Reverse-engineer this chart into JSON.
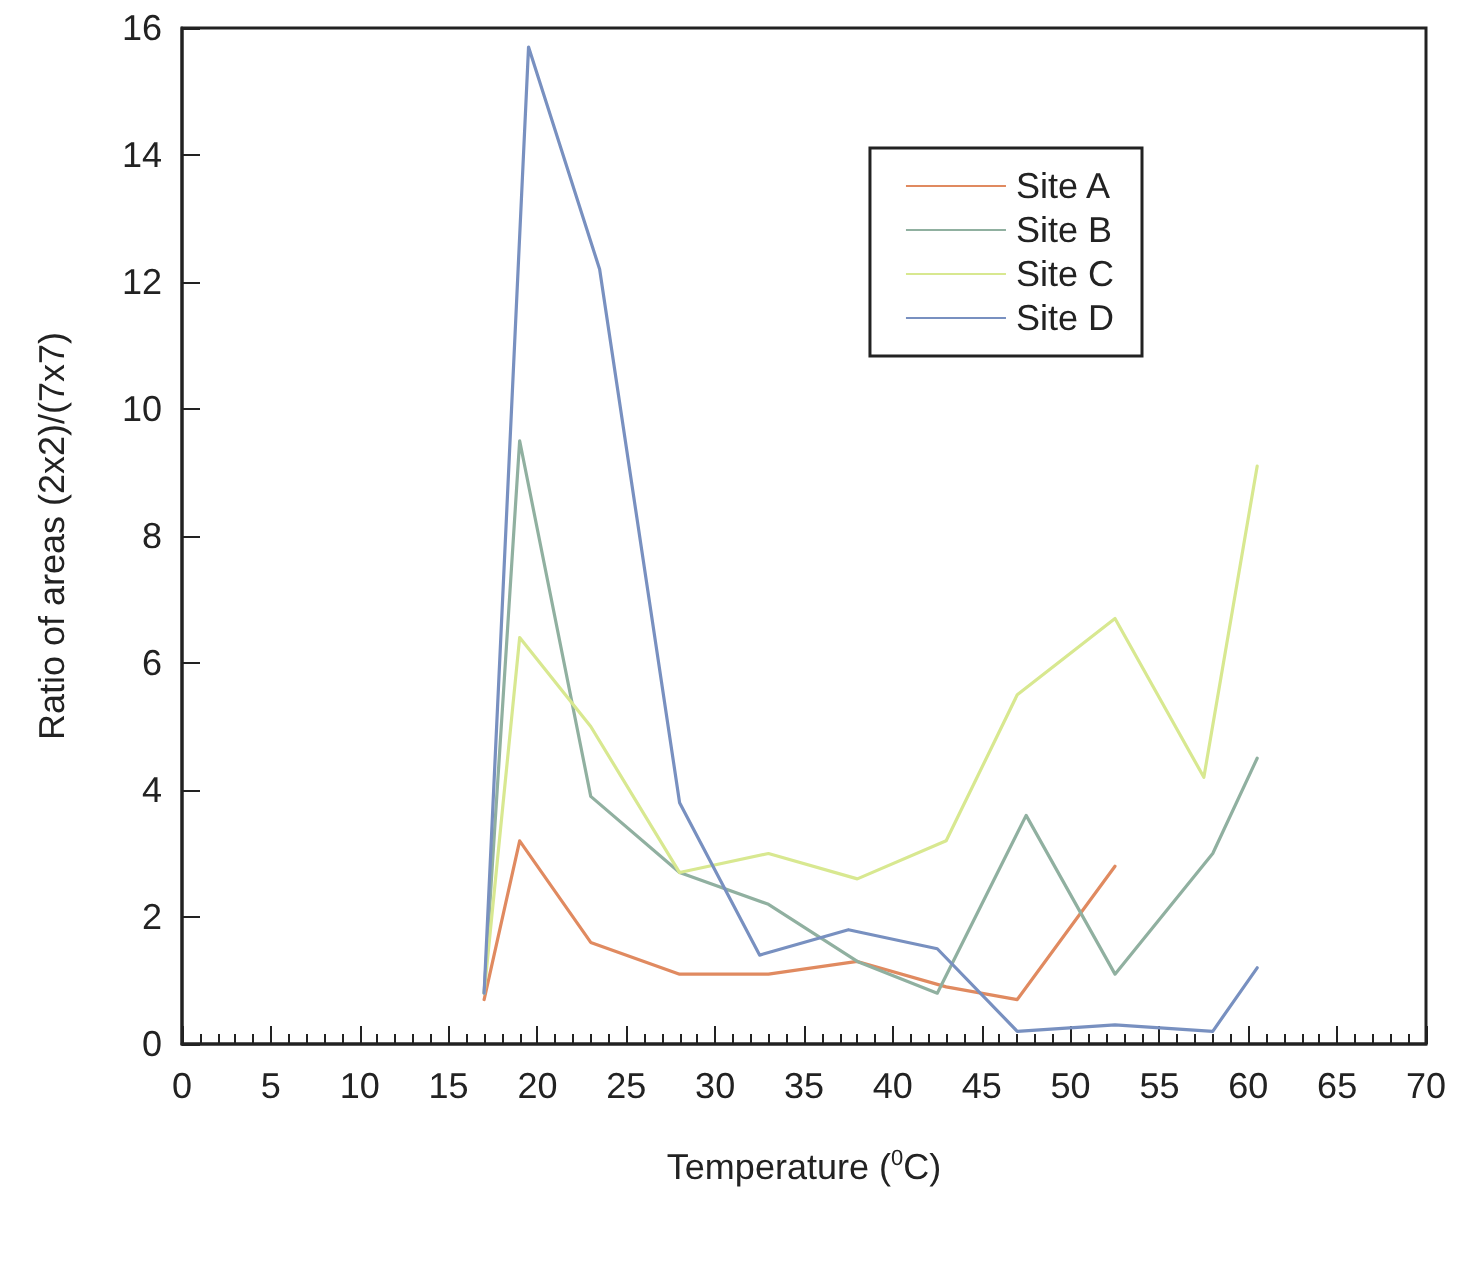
{
  "chart_data": {
    "type": "line",
    "xlabel": "Temperature ($^{0}$C)",
    "ylabel": "Ratio of areas (2x2)/(7x7)",
    "xlim": [
      0,
      70
    ],
    "xticks": [
      0,
      5,
      10,
      15,
      20,
      25,
      30,
      35,
      40,
      45,
      50,
      55,
      60,
      65,
      70
    ],
    "ylim": [
      0,
      16
    ],
    "yticks": [
      0,
      2,
      4,
      6,
      8,
      10,
      12,
      14,
      16
    ],
    "grid": false,
    "legend": "top right",
    "marker": "none",
    "line_style": "solid",
    "series": [
      {
        "name": "Site A",
        "color": "#e08a60",
        "x": [
          17,
          19,
          23,
          28,
          33,
          38,
          43,
          47,
          52.5
        ],
        "values": [
          0.7,
          3.2,
          1.6,
          1.1,
          1.1,
          1.3,
          0.9,
          0.7,
          2.8
        ]
      },
      {
        "name": "Site B",
        "color": "#90b0a0",
        "x": [
          17,
          19,
          23,
          28,
          33,
          38,
          42.5,
          47.5,
          52.5,
          58,
          60.5
        ],
        "values": [
          0.8,
          9.5,
          3.9,
          2.7,
          2.2,
          1.3,
          0.8,
          3.6,
          1.1,
          3.0,
          4.5
        ]
      },
      {
        "name": "Site C",
        "color": "#d8e890",
        "x": [
          17,
          19,
          23,
          28,
          33,
          38,
          43,
          47,
          52.5,
          57.5,
          60.5
        ],
        "values": [
          0.8,
          6.4,
          5.0,
          2.7,
          3.0,
          2.6,
          3.2,
          5.5,
          6.7,
          4.2,
          9.1
        ]
      },
      {
        "name": "Site D",
        "color": "#7890c0",
        "x": [
          17,
          19.5,
          23.5,
          28,
          32.5,
          37.5,
          42.5,
          47,
          52.5,
          58,
          60.5
        ],
        "values": [
          0.8,
          15.7,
          12.2,
          3.8,
          1.4,
          1.8,
          1.5,
          0.2,
          0.3,
          0.2,
          1.2
        ]
      }
    ]
  }
}
